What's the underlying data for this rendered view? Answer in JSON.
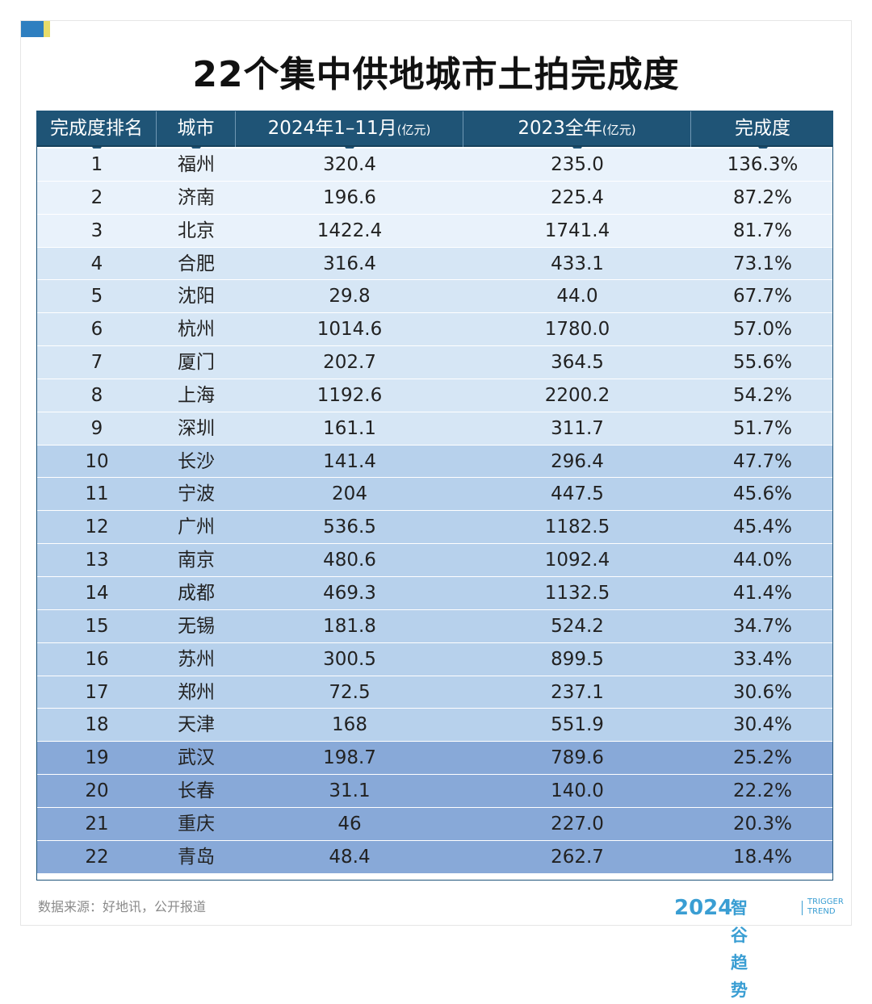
{
  "title": "22个集中供地城市土拍完成度",
  "headers": {
    "rank": "完成度排名",
    "city": "城市",
    "y2024": "2024年1–11月",
    "y2024_unit": "(亿元)",
    "y2023": "2023全年",
    "y2023_unit": "(亿元)",
    "rate": "完成度"
  },
  "rows": [
    {
      "rank": "1",
      "city": "福州",
      "v2024": "320.4",
      "v2023": "235.0",
      "rate": "136.3%"
    },
    {
      "rank": "2",
      "city": "济南",
      "v2024": "196.6",
      "v2023": "225.4",
      "rate": "87.2%"
    },
    {
      "rank": "3",
      "city": "北京",
      "v2024": "1422.4",
      "v2023": "1741.4",
      "rate": "81.7%"
    },
    {
      "rank": "4",
      "city": "合肥",
      "v2024": "316.4",
      "v2023": "433.1",
      "rate": "73.1%"
    },
    {
      "rank": "5",
      "city": "沈阳",
      "v2024": "29.8",
      "v2023": "44.0",
      "rate": "67.7%"
    },
    {
      "rank": "6",
      "city": "杭州",
      "v2024": "1014.6",
      "v2023": "1780.0",
      "rate": "57.0%"
    },
    {
      "rank": "7",
      "city": "厦门",
      "v2024": "202.7",
      "v2023": "364.5",
      "rate": "55.6%"
    },
    {
      "rank": "8",
      "city": "上海",
      "v2024": "1192.6",
      "v2023": "2200.2",
      "rate": "54.2%"
    },
    {
      "rank": "9",
      "city": "深圳",
      "v2024": "161.1",
      "v2023": "311.7",
      "rate": "51.7%"
    },
    {
      "rank": "10",
      "city": "长沙",
      "v2024": "141.4",
      "v2023": "296.4",
      "rate": "47.7%"
    },
    {
      "rank": "11",
      "city": "宁波",
      "v2024": "204",
      "v2023": "447.5",
      "rate": "45.6%"
    },
    {
      "rank": "12",
      "city": "广州",
      "v2024": "536.5",
      "v2023": "1182.5",
      "rate": "45.4%"
    },
    {
      "rank": "13",
      "city": "南京",
      "v2024": "480.6",
      "v2023": "1092.4",
      "rate": "44.0%"
    },
    {
      "rank": "14",
      "city": "成都",
      "v2024": "469.3",
      "v2023": "1132.5",
      "rate": "41.4%"
    },
    {
      "rank": "15",
      "city": "无锡",
      "v2024": "181.8",
      "v2023": "524.2",
      "rate": "34.7%"
    },
    {
      "rank": "16",
      "city": "苏州",
      "v2024": "300.5",
      "v2023": "899.5",
      "rate": "33.4%"
    },
    {
      "rank": "17",
      "city": "郑州",
      "v2024": "72.5",
      "v2023": "237.1",
      "rate": "30.6%"
    },
    {
      "rank": "18",
      "city": "天津",
      "v2024": "168",
      "v2023": "551.9",
      "rate": "30.4%"
    },
    {
      "rank": "19",
      "city": "武汉",
      "v2024": "198.7",
      "v2023": "789.6",
      "rate": "25.2%"
    },
    {
      "rank": "20",
      "city": "长春",
      "v2024": "31.1",
      "v2023": "140.0",
      "rate": "22.2%"
    },
    {
      "rank": "21",
      "city": "重庆",
      "v2024": "46",
      "v2023": "227.0",
      "rate": "20.3%"
    },
    {
      "rank": "22",
      "city": "青岛",
      "v2024": "48.4",
      "v2023": "262.7",
      "rate": "18.4%"
    }
  ],
  "row_tiers": [
    1,
    1,
    1,
    2,
    2,
    2,
    2,
    2,
    2,
    3,
    3,
    3,
    3,
    3,
    3,
    3,
    3,
    3,
    4,
    4,
    4,
    4
  ],
  "tier_colors": {
    "1": "#e9f2fb",
    "2": "#d6e6f5",
    "3": "#b7d1ec",
    "4": "#88a9d8"
  },
  "header_color": "#1f5476",
  "source": "数据来源：好地讯，公开报道",
  "brand": {
    "year": "2024",
    "name": "智谷趋势",
    "en_line1": "TRIGGER",
    "en_line2": "TREND",
    "color": "#3a9ed3"
  }
}
